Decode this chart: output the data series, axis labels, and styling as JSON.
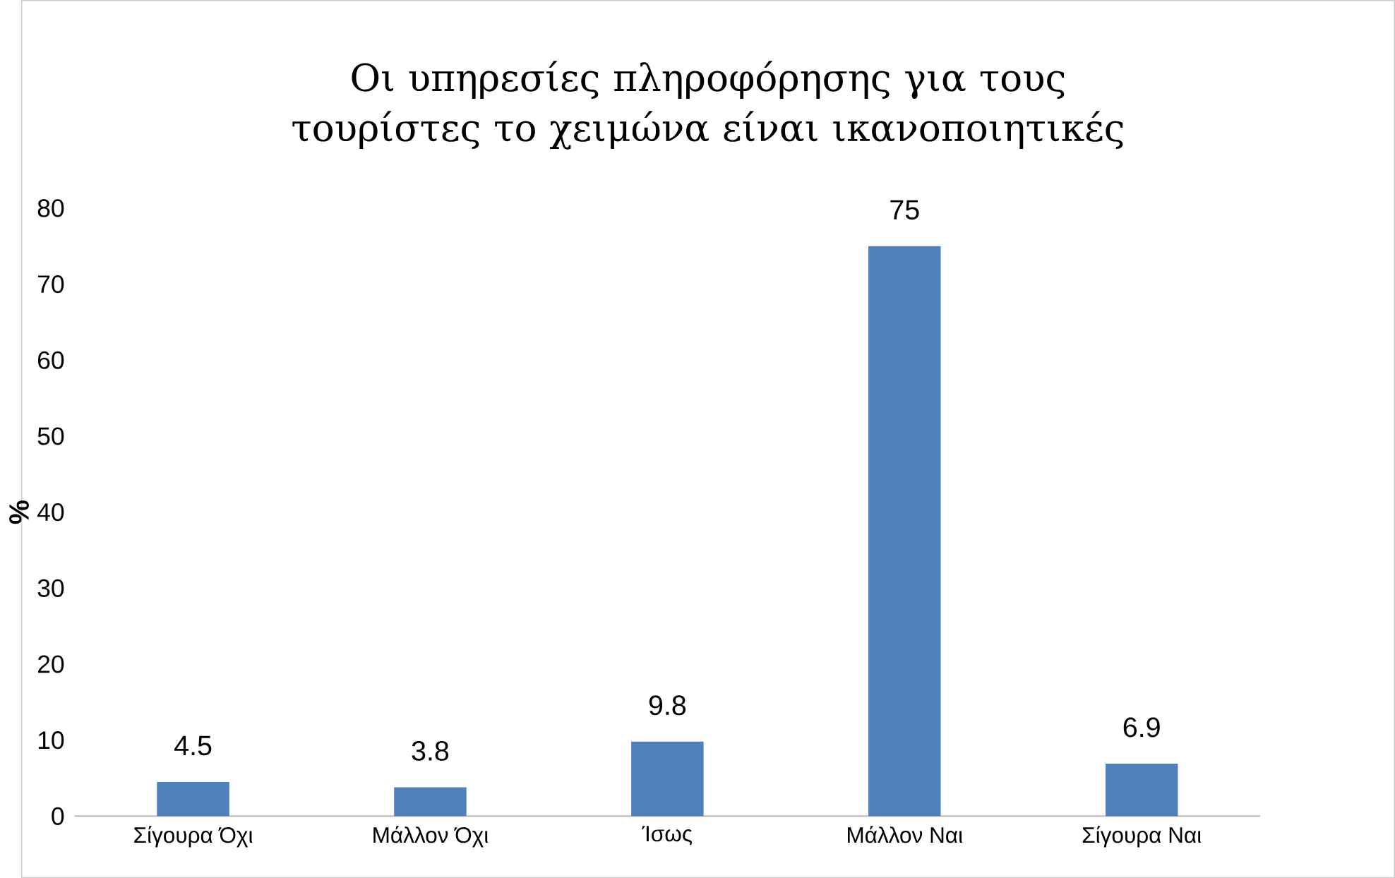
{
  "chart_data": {
    "type": "bar",
    "title": "Οι υπηρεσίες πληροφόρησης για τους τουρίστες το χειμώνα είναι ικανοποιητικές",
    "ylabel": "%",
    "categories": [
      "Σίγουρα Όχι",
      "Μάλλον Όχι",
      "Ίσως",
      "Μάλλον Ναι",
      "Σίγουρα Ναι"
    ],
    "values": [
      4.5,
      3.8,
      9.8,
      75,
      6.9
    ],
    "color": "#4f81bd",
    "ylim": [
      0,
      80
    ],
    "yticks": [
      0,
      10,
      20,
      30,
      40,
      50,
      60,
      70,
      80
    ],
    "data_labels": true
  }
}
